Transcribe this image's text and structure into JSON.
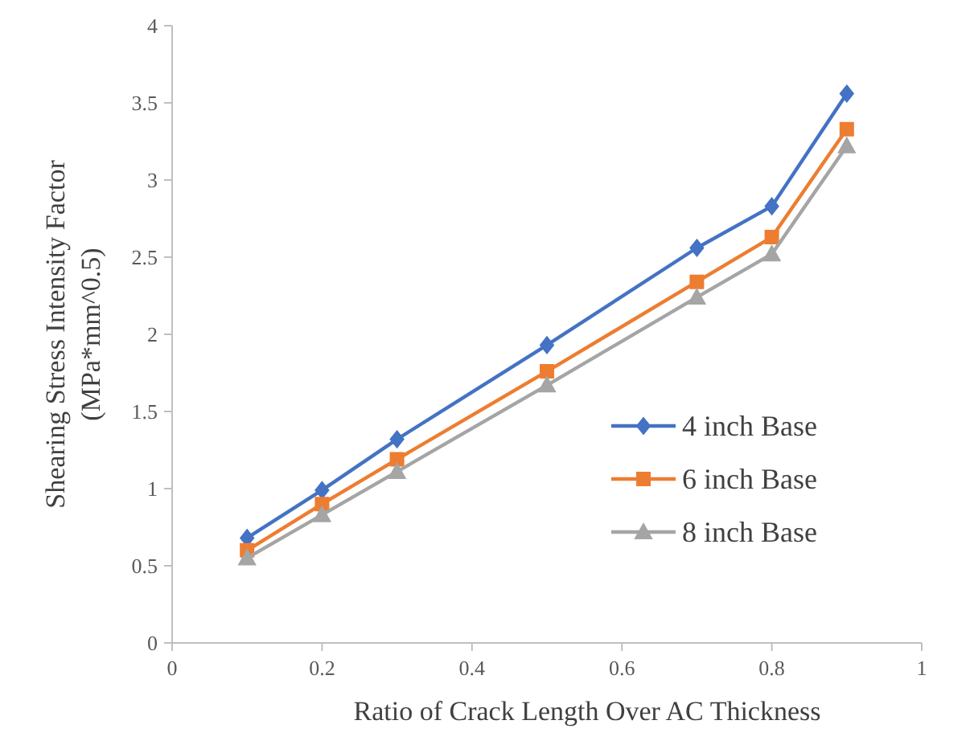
{
  "chart_data": {
    "type": "line",
    "xlabel": "Ratio of Crack Length Over AC Thickness",
    "ylabel": "Shearing Stress Intensity Factor (MPa*mm^0.5)",
    "x": [
      0.1,
      0.2,
      0.3,
      0.5,
      0.7,
      0.8,
      0.9
    ],
    "series": [
      {
        "name": "4 inch Base",
        "color": "#4472c4",
        "marker": "diamond",
        "values": [
          0.68,
          0.99,
          1.32,
          1.93,
          2.56,
          2.83,
          3.56
        ]
      },
      {
        "name": "6 inch Base",
        "color": "#ed7d31",
        "marker": "square",
        "values": [
          0.6,
          0.9,
          1.19,
          1.76,
          2.34,
          2.63,
          3.33
        ]
      },
      {
        "name": "8 inch Base",
        "color": "#a5a5a5",
        "marker": "triangle",
        "values": [
          0.55,
          0.83,
          1.11,
          1.67,
          2.24,
          2.52,
          3.22
        ]
      }
    ],
    "xlim": [
      0,
      1
    ],
    "xticks": [
      0,
      0.2,
      0.4,
      0.6,
      0.8,
      1
    ],
    "ylim": [
      0,
      4
    ],
    "yticks": [
      0,
      0.5,
      1,
      1.5,
      2,
      2.5,
      3,
      3.5,
      4
    ],
    "grid": false,
    "legend": "right"
  }
}
